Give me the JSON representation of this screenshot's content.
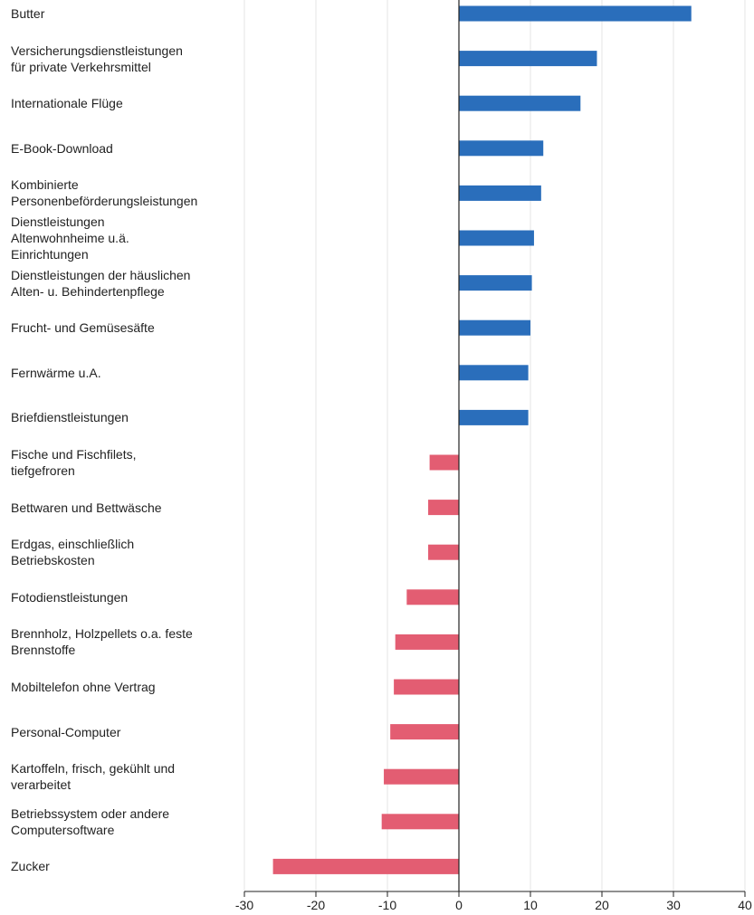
{
  "chart_data": {
    "type": "bar",
    "orientation": "horizontal",
    "title": "",
    "xlabel": "",
    "ylabel": "",
    "xlim": [
      -30,
      40
    ],
    "x_ticks": [
      "-30",
      "-20",
      "-10",
      "0",
      "10",
      "20",
      "30",
      "40"
    ],
    "grid": "vertical",
    "legend": "none",
    "colors": {
      "positive": "#2a6ebb",
      "negative": "#e35d72",
      "grid": "#e4e4e4",
      "zero_line": "#222222"
    },
    "categories": [
      "Butter",
      "Versicherungsdienstleistungen\nfür private Verkehrsmittel",
      "Internationale Flüge",
      "E-Book-Download",
      "Kombinierte\nPersonenbeförderungsleistungen",
      "Dienstleistungen\nAltenwohnheime u.ä.\nEinrichtungen",
      "Dienstleistungen der häuslichen\nAlten- u. Behindertenpflege",
      "Frucht- und Gemüsesäfte",
      "Fernwärme u.A.",
      "Briefdienstleistungen",
      "Fische und Fischfilets,\ntiefgefroren",
      "Bettwaren und Bettwäsche",
      "Erdgas, einschließlich\nBetriebskosten",
      "Fotodienstleistungen",
      "Brennholz, Holzpellets o.a. feste\nBrennstoffe",
      "Mobiltelefon ohne Vertrag",
      "Personal-Computer",
      "Kartoffeln, frisch, gekühlt und\nverarbeitet",
      "Betriebssystem oder andere\nComputersoftware",
      "Zucker"
    ],
    "values": [
      32.5,
      19.3,
      17.0,
      11.8,
      11.5,
      10.5,
      10.2,
      10.0,
      9.7,
      9.7,
      -4.1,
      -4.3,
      -4.3,
      -7.3,
      -8.9,
      -9.1,
      -9.6,
      -10.5,
      -10.8,
      -26.0
    ]
  }
}
